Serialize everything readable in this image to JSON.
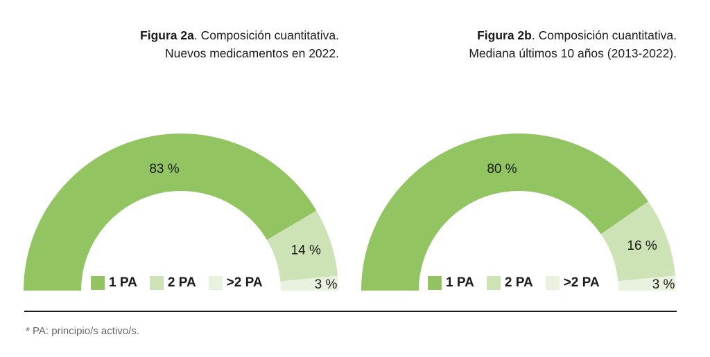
{
  "colors": {
    "one_pa": "#92c462",
    "two_pa": "#cde3b6",
    "more_pa": "#e8f2de"
  },
  "chart_data": [
    {
      "type": "pie",
      "variant": "semi-donut",
      "title_bold": "Figura 2a",
      "title_rest": ". Composición cuantitativa.",
      "subtitle": "Nuevos medicamentos en 2022.",
      "categories": [
        "1 PA",
        "2 PA",
        ">2 PA"
      ],
      "values": [
        83,
        14,
        3
      ],
      "labels": [
        "83 %",
        "14 %",
        "3 %"
      ],
      "legend_position": "bottom-center-inside"
    },
    {
      "type": "pie",
      "variant": "semi-donut",
      "title_bold": "Figura 2b",
      "title_rest": ". Composición cuantitativa.",
      "subtitle": "Mediana últimos 10 años (2013-2022).",
      "categories": [
        "1 PA",
        "2 PA",
        ">2 PA"
      ],
      "values": [
        80,
        16,
        3
      ],
      "labels": [
        "80 %",
        "16 %",
        "3 %"
      ],
      "legend_position": "bottom-center-inside"
    }
  ],
  "footnote": "* PA: principio/s activo/s."
}
